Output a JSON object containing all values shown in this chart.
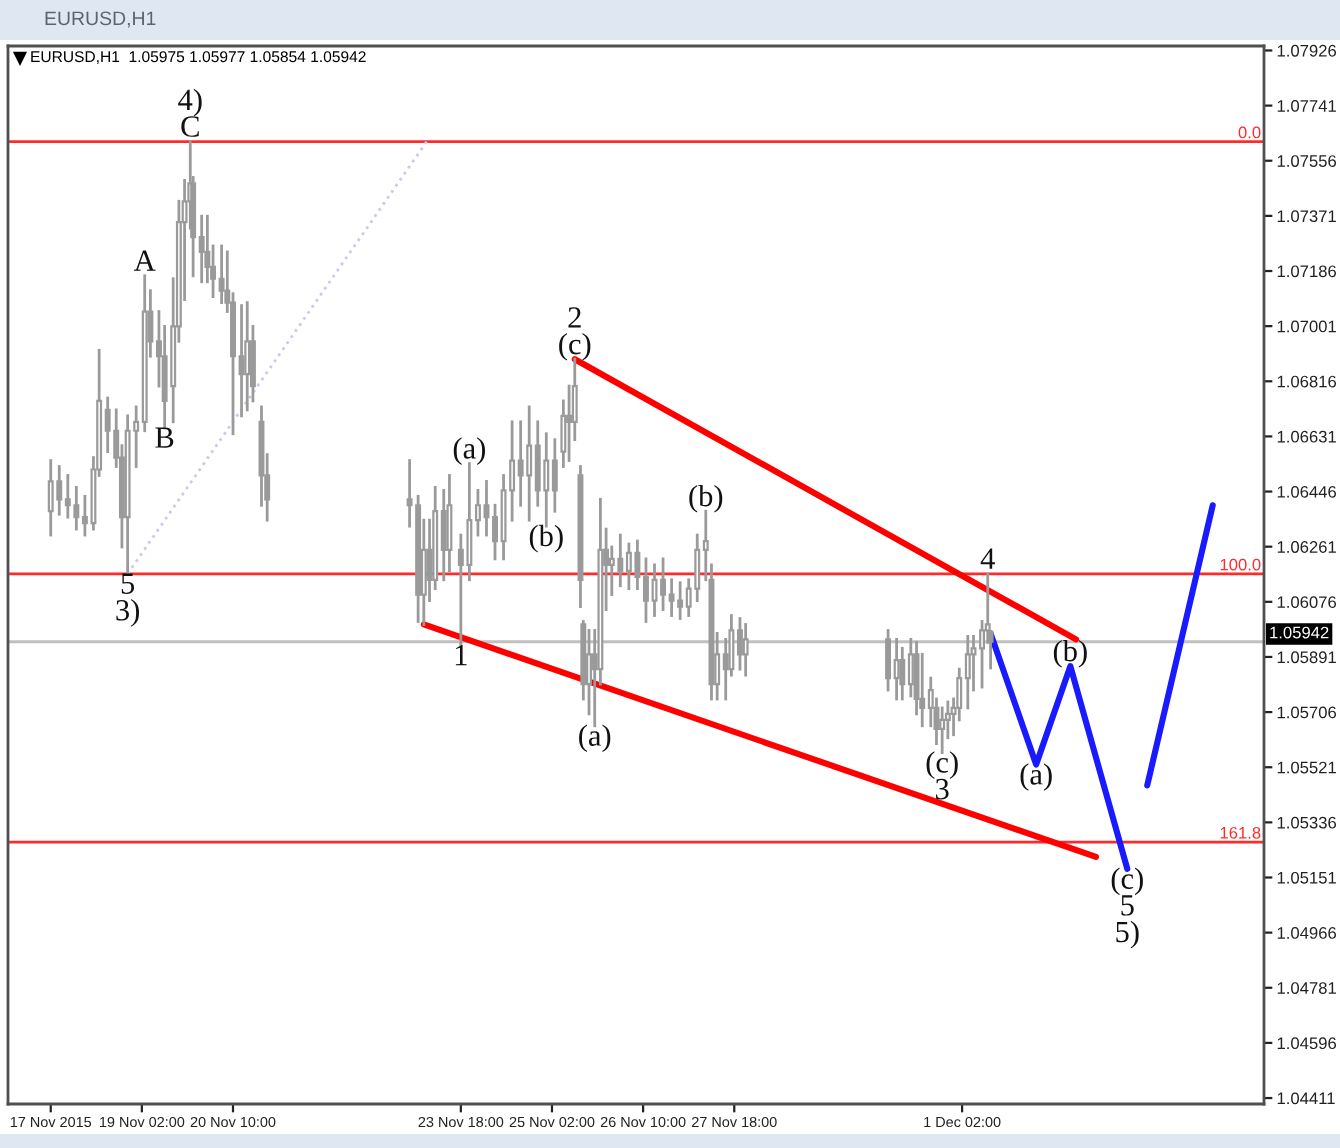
{
  "chart_data": {
    "type": "candlestick",
    "title": "EURUSD,H1",
    "subtitle": "EURUSD,H1  1.05975 1.05977 1.05854 1.05942",
    "color": "#9a9a9a",
    "x": [
      "2015-11-17T18:00",
      "2015-11-17T21:00",
      "2015-11-18T00:00",
      "2015-11-18T03:00",
      "2015-11-18T06:00",
      "2015-11-18T09:00",
      "2015-11-18T11:00",
      "2015-11-18T14:00",
      "2015-11-18T17:00",
      "2015-11-18T19:00",
      "2015-11-18T21:00",
      "2015-11-19T00:00",
      "2015-11-19T03:00",
      "2015-11-19T05:00",
      "2015-11-19T08:00",
      "2015-11-19T10:00",
      "2015-11-19T13:00",
      "2015-11-19T15:00",
      "2015-11-19T17:00",
      "2015-11-19T19:00",
      "2015-11-19T20:00",
      "2015-11-19T23:00",
      "2015-11-20T01:00",
      "2015-11-20T03:00",
      "2015-11-20T06:00",
      "2015-11-20T08:00",
      "2015-11-20T10:00",
      "2015-11-20T13:00",
      "2015-11-20T15:00",
      "2015-11-20T17:00",
      "2015-11-20T20:00",
      "2015-11-20T22:00",
      "2015-11-23T00:00",
      "2015-11-23T03:00",
      "2015-11-23T05:00",
      "2015-11-23T07:00",
      "2015-11-23T09:00",
      "2015-11-23T12:00",
      "2015-11-23T14:00",
      "2015-11-23T18:00",
      "2015-11-23T21:00",
      "2015-11-24T00:00",
      "2015-11-24T03:00",
      "2015-11-24T06:00",
      "2015-11-24T09:00",
      "2015-11-24T12:00",
      "2015-11-24T15:00",
      "2015-11-24T18:00",
      "2015-11-24T21:00",
      "2015-11-25T00:00",
      "2015-11-25T03:00",
      "2015-11-25T06:00",
      "2015-11-25T08:00",
      "2015-11-25T10:00",
      "2015-11-25T12:00",
      "2015-11-25T13:00",
      "2015-11-25T15:00",
      "2015-11-25T17:00",
      "2015-11-25T19:00",
      "2015-11-25T21:00",
      "2015-11-25T23:00",
      "2015-11-26T02:00",
      "2015-11-26T05:00",
      "2015-11-26T08:00",
      "2015-11-26T11:00",
      "2015-11-26T14:00",
      "2015-11-26T17:00",
      "2015-11-26T20:00",
      "2015-11-26T23:00",
      "2015-11-27T02:00",
      "2015-11-27T05:00",
      "2015-11-27T08:00",
      "2015-11-27T10:00",
      "2015-11-27T12:00",
      "2015-11-27T15:00",
      "2015-11-27T17:00",
      "2015-11-27T20:00",
      "2015-11-27T22:00",
      "2015-11-30T00:00",
      "2015-11-30T03:00",
      "2015-11-30T05:00",
      "2015-11-30T08:00",
      "2015-11-30T10:00",
      "2015-11-30T12:00",
      "2015-11-30T15:00",
      "2015-11-30T17:00",
      "2015-11-30T19:00",
      "2015-11-30T21:00",
      "2015-11-30T23:00",
      "2015-12-01T01:00",
      "2015-12-01T04:00",
      "2015-12-01T06:00",
      "2015-12-01T09:00",
      "2015-12-01T11:00",
      "2015-12-01T12:00"
    ],
    "ohlc": [
      [
        1.0638,
        1.0655,
        1.063,
        1.0648
      ],
      [
        1.0648,
        1.0653,
        1.0637,
        1.0642
      ],
      [
        1.0642,
        1.065,
        1.0636,
        1.064
      ],
      [
        1.064,
        1.0646,
        1.0632,
        1.0636
      ],
      [
        1.0636,
        1.0643,
        1.063,
        1.0634
      ],
      [
        1.0634,
        1.0656,
        1.0632,
        1.0652
      ],
      [
        1.0652,
        1.0692,
        1.065,
        1.0675
      ],
      [
        1.0672,
        1.0676,
        1.0658,
        1.0665
      ],
      [
        1.0665,
        1.0672,
        1.0653,
        1.0656
      ],
      [
        1.0656,
        1.066,
        1.0626,
        1.0636
      ],
      [
        1.0636,
        1.067,
        1.0617,
        1.0665
      ],
      [
        1.0665,
        1.0673,
        1.0653,
        1.0668
      ],
      [
        1.0668,
        1.0717,
        1.0665,
        1.0705
      ],
      [
        1.0705,
        1.0712,
        1.069,
        1.0695
      ],
      [
        1.0695,
        1.0705,
        1.068,
        1.069
      ],
      [
        1.069,
        1.07,
        1.0666,
        1.0675
      ],
      [
        1.068,
        1.0716,
        1.0668,
        1.07
      ],
      [
        1.07,
        1.0742,
        1.0695,
        1.0735
      ],
      [
        1.0735,
        1.0749,
        1.0709,
        1.0742
      ],
      [
        1.0742,
        1.0762,
        1.0733,
        1.0748
      ],
      [
        1.0748,
        1.075,
        1.0717,
        1.073
      ],
      [
        1.073,
        1.0737,
        1.0715,
        1.0725
      ],
      [
        1.0725,
        1.0737,
        1.0715,
        1.072
      ],
      [
        1.072,
        1.0727,
        1.071,
        1.0716
      ],
      [
        1.0716,
        1.0727,
        1.0708,
        1.0712
      ],
      [
        1.0712,
        1.0725,
        1.0705,
        1.0708
      ],
      [
        1.0708,
        1.0711,
        1.0664,
        1.069
      ],
      [
        1.069,
        1.0707,
        1.067,
        1.0684
      ],
      [
        1.0684,
        1.0708,
        1.0672,
        1.0695
      ],
      [
        1.0695,
        1.07,
        1.0675,
        1.068
      ],
      [
        1.0668,
        1.0673,
        1.064,
        1.065
      ],
      [
        1.065,
        1.0657,
        1.0635,
        1.0642
      ],
      [
        1.0642,
        1.0655,
        1.0633,
        1.064
      ],
      [
        1.064,
        1.0643,
        1.0601,
        1.061
      ],
      [
        1.061,
        1.0635,
        1.06,
        1.0625
      ],
      [
        1.0625,
        1.0635,
        1.0608,
        1.0615
      ],
      [
        1.0615,
        1.0646,
        1.0612,
        1.0638
      ],
      [
        1.0638,
        1.0645,
        1.0615,
        1.0625
      ],
      [
        1.0625,
        1.065,
        1.0618,
        1.064
      ],
      [
        1.0625,
        1.063,
        1.0593,
        1.062
      ],
      [
        1.062,
        1.0654,
        1.0615,
        1.0635
      ],
      [
        1.0635,
        1.0645,
        1.063,
        1.064
      ],
      [
        1.064,
        1.0648,
        1.063,
        1.0636
      ],
      [
        1.0636,
        1.064,
        1.0622,
        1.0628
      ],
      [
        1.0628,
        1.065,
        1.0622,
        1.0645
      ],
      [
        1.0645,
        1.0668,
        1.0635,
        1.0655
      ],
      [
        1.0655,
        1.0668,
        1.064,
        1.065
      ],
      [
        1.065,
        1.0673,
        1.0635,
        1.066
      ],
      [
        1.066,
        1.0668,
        1.064,
        1.0645
      ],
      [
        1.0645,
        1.0664,
        1.0633,
        1.0655
      ],
      [
        1.0655,
        1.0662,
        1.0638,
        1.0645
      ],
      [
        1.0658,
        1.0675,
        1.0653,
        1.067
      ],
      [
        1.067,
        1.068,
        1.0655,
        1.0668
      ],
      [
        1.0668,
        1.0689,
        1.0662,
        1.068
      ],
      [
        1.065,
        1.0653,
        1.0606,
        1.0615
      ],
      [
        1.06,
        1.0601,
        1.0575,
        1.058
      ],
      [
        1.058,
        1.0598,
        1.057,
        1.059
      ],
      [
        1.059,
        1.0598,
        1.0566,
        1.0585
      ],
      [
        1.0585,
        1.0642,
        1.058,
        1.0625
      ],
      [
        1.0625,
        1.0632,
        1.0605,
        1.062
      ],
      [
        1.062,
        1.0626,
        1.061,
        1.0622
      ],
      [
        1.0622,
        1.063,
        1.0613,
        1.0618
      ],
      [
        1.0618,
        1.0627,
        1.0612,
        1.0624
      ],
      [
        1.0624,
        1.0628,
        1.0612,
        1.0616
      ],
      [
        1.0616,
        1.0622,
        1.0601,
        1.0608
      ],
      [
        1.0608,
        1.062,
        1.0603,
        1.0615
      ],
      [
        1.0615,
        1.0622,
        1.0605,
        1.061
      ],
      [
        1.061,
        1.0615,
        1.0603,
        1.0608
      ],
      [
        1.0608,
        1.0614,
        1.0602,
        1.0606
      ],
      [
        1.0606,
        1.0615,
        1.0603,
        1.0612
      ],
      [
        1.0612,
        1.063,
        1.0608,
        1.0625
      ],
      [
        1.0625,
        1.0638,
        1.0615,
        1.0628
      ],
      [
        1.0615,
        1.062,
        1.0575,
        1.058
      ],
      [
        1.058,
        1.0597,
        1.0575,
        1.059
      ],
      [
        1.059,
        1.0595,
        1.0575,
        1.0585
      ],
      [
        1.0585,
        1.0603,
        1.0583,
        1.0598
      ],
      [
        1.0598,
        1.0602,
        1.0585,
        1.059
      ],
      [
        1.059,
        1.06,
        1.0583,
        1.0595
      ],
      [
        1.0595,
        1.0598,
        1.0578,
        1.0582
      ],
      [
        1.0582,
        1.0595,
        1.0575,
        1.0588
      ],
      [
        1.0588,
        1.0592,
        1.0575,
        1.058
      ],
      [
        1.058,
        1.0595,
        1.0576,
        1.059
      ],
      [
        1.059,
        1.0594,
        1.057,
        1.0575
      ],
      [
        1.0575,
        1.059,
        1.0566,
        1.0572
      ],
      [
        1.0572,
        1.0582,
        1.0566,
        1.0578
      ],
      [
        1.0572,
        1.0575,
        1.056,
        1.0565
      ],
      [
        1.0565,
        1.0572,
        1.0557,
        1.0568
      ],
      [
        1.0568,
        1.0574,
        1.0562,
        1.057
      ],
      [
        1.057,
        1.0575,
        1.0563,
        1.0572
      ],
      [
        1.0572,
        1.0585,
        1.0568,
        1.0582
      ],
      [
        1.0582,
        1.0596,
        1.0572,
        1.059
      ],
      [
        1.059,
        1.0596,
        1.0578,
        1.0592
      ],
      [
        1.0592,
        1.0601,
        1.0579,
        1.0598
      ],
      [
        1.0598,
        1.0617,
        1.0594,
        1.06
      ],
      [
        1.05975,
        1.05977,
        1.05854,
        1.05942
      ]
    ],
    "series": [
      {
        "type": "line",
        "x": [
          "2015-11-18T21:00",
          "2015-11-23T06:00"
        ],
        "values": [
          1.0617,
          1.0762
        ],
        "color": "#c8cce8",
        "line_style": "dotted"
      },
      {
        "type": "line",
        "x": [
          "2015-11-25T10:00",
          "2015-12-02T18:00"
        ],
        "values": [
          1.0689,
          1.0595
        ],
        "color": "#ff0000"
      },
      {
        "type": "line",
        "x": [
          "2015-11-23T05:00",
          "2015-12-03T01:00"
        ],
        "values": [
          1.06,
          1.0522
        ],
        "color": "#ff0000"
      },
      {
        "type": "line",
        "x": [
          "2015-12-01T12:00",
          "2015-12-02T04:00",
          "2015-12-02T16:00",
          "2015-12-03T12:00"
        ],
        "values": [
          1.0597,
          1.0553,
          1.0586,
          1.0518
        ],
        "color": "#1a1aff"
      },
      {
        "type": "line",
        "x": [
          "2015-12-03T19:00",
          "2015-12-04T18:00"
        ],
        "values": [
          1.0546,
          1.064
        ],
        "color": "#1a1aff"
      }
    ],
    "xlim": [
      "2015-11-17T03:00",
      "2015-12-05T12:00"
    ],
    "xticks": [
      {
        "value": "2015-11-17T18:00",
        "label": "17 Nov 2015"
      },
      {
        "value": "2015-11-19T02:00",
        "label": "19 Nov 02:00"
      },
      {
        "value": "2015-11-20T10:00",
        "label": "20 Nov 10:00"
      },
      {
        "value": "2015-11-23T18:00",
        "label": "23 Nov 18:00"
      },
      {
        "value": "2015-11-25T02:00",
        "label": "25 Nov 02:00"
      },
      {
        "value": "2015-11-26T10:00",
        "label": "26 Nov 10:00"
      },
      {
        "value": "2015-11-27T18:00",
        "label": "27 Nov 18:00"
      },
      {
        "value": "2015-12-01T02:00",
        "label": "1 Dec 02:00"
      }
    ],
    "ylim": [
      1.04391,
      1.07941
    ],
    "yticks": [
      1.07926,
      1.07741,
      1.07556,
      1.07371,
      1.07186,
      1.07001,
      1.06816,
      1.06631,
      1.06446,
      1.06261,
      1.06076,
      1.05891,
      1.05706,
      1.05521,
      1.05336,
      1.05151,
      1.04966,
      1.04781,
      1.04596,
      1.04411
    ],
    "ref_lines": [
      {
        "axis": "y",
        "value": 1.0762,
        "color": "#ff2a2a"
      },
      {
        "axis": "y",
        "value": 1.0617,
        "color": "#ff2a2a"
      },
      {
        "axis": "y",
        "value": 1.0527,
        "color": "#ff2a2a"
      },
      {
        "axis": "y",
        "value": 1.05942,
        "label": "1.05942",
        "color": "#c0c0c0"
      }
    ],
    "annotations": [
      {
        "text": "4)\nC",
        "x": "2015-11-19T19:00",
        "y": 1.0762
      },
      {
        "text": "A",
        "x": "2015-11-19T03:00",
        "y": 1.0717
      },
      {
        "text": "B",
        "x": "2015-11-19T10:00",
        "y": 1.0666
      },
      {
        "text": "5\n3)",
        "x": "2015-11-18T21:00",
        "y": 1.0617
      },
      {
        "text": "1",
        "x": "2015-11-23T18:00",
        "y": 1.0593
      },
      {
        "text": "(a)",
        "x": "2015-11-23T21:00",
        "y": 1.0654
      },
      {
        "text": "(b)",
        "x": "2015-11-25T00:00",
        "y": 1.0633
      },
      {
        "text": "2\n(c)",
        "x": "2015-11-25T10:00",
        "y": 1.0689
      },
      {
        "text": "(a)",
        "x": "2015-11-25T17:00",
        "y": 1.0566
      },
      {
        "text": "(b)",
        "x": "2015-11-27T08:00",
        "y": 1.0638
      },
      {
        "text": "4",
        "x": "2015-12-01T11:00",
        "y": 1.0617
      },
      {
        "text": "(c)\n3",
        "x": "2015-11-30T19:00",
        "y": 1.0557
      },
      {
        "text": "(a)",
        "x": "2015-12-02T04:00",
        "y": 1.0553
      },
      {
        "text": "(b)",
        "x": "2015-12-02T16:00",
        "y": 1.0586
      },
      {
        "text": "(c)\n5\n5)",
        "x": "2015-12-03T12:00",
        "y": 1.0518
      },
      {
        "text": "0.0",
        "x": "2015-12-05T11:00",
        "y": 1.0762
      },
      {
        "text": "100.0",
        "x": "2015-12-05T11:00",
        "y": 1.0617
      },
      {
        "text": "161.8",
        "x": "2015-12-05T11:00",
        "y": 1.0527
      }
    ]
  }
}
